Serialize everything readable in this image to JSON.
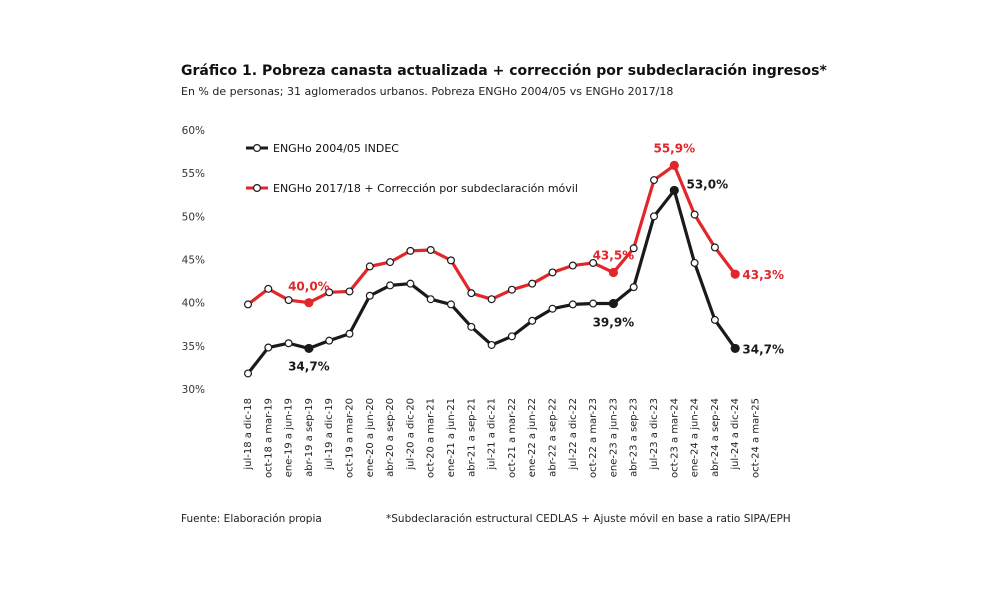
{
  "header": {
    "title": "Gráfico 1. Pobreza canasta actualizada + corrección por subdeclaración ingresos*",
    "subtitle": "En % de personas; 31 aglomerados urbanos. Pobreza ENGHo 2004/05 vs ENGHo 2017/18"
  },
  "footer": {
    "source": "Fuente: Elaboración propia",
    "note": "*Subdeclaración estructural CEDLAS + Ajuste móvil en base a ratio SIPA/EPH"
  },
  "chart_data": {
    "type": "line",
    "title": "Gráfico 1. Pobreza canasta actualizada + corrección por subdeclaración ingresos*",
    "subtitle": "En % de personas; 31 aglomerados urbanos. Pobreza ENGHo 2004/05 vs ENGHo 2017/18",
    "xlabel": "",
    "ylabel": "",
    "ylim": [
      30,
      60
    ],
    "yticks": [
      "30%",
      "35%",
      "40%",
      "45%",
      "50%",
      "55%",
      "60%"
    ],
    "grid": false,
    "legend_position": "top-left",
    "categories": [
      "jul-18 a dic-18",
      "oct-18 a mar-19",
      "ene-19 a jun-19",
      "abr-19 a sep-19",
      "jul-19 a dic-19",
      "oct-19 a mar-20",
      "ene-20 a jun-20",
      "abr-20 a sep-20",
      "jul-20 a dic-20",
      "oct-20 a mar-21",
      "ene-21 a jun-21",
      "abr-21 a sep-21",
      "jul-21 a dic-21",
      "oct-21 a mar-22",
      "ene-22 a jun-22",
      "abr-22 a sep-22",
      "jul-22 a dic-22",
      "oct-22 a mar-23",
      "ene-23 a jun-23",
      "abr-23 a sep-23",
      "jul-23 a dic-23",
      "oct-23 a mar-24",
      "ene-24 a jun-24",
      "abr-24 a sep-24",
      "jul-24 a dic-24",
      "oct-24 a mar-25"
    ],
    "series": [
      {
        "name": "ENGHo 2004/05 INDEC",
        "color": "#1a1a1a",
        "values": [
          31.8,
          34.8,
          35.3,
          34.7,
          35.6,
          36.4,
          40.8,
          42.0,
          42.2,
          40.4,
          39.8,
          37.2,
          35.1,
          36.1,
          37.9,
          39.3,
          39.8,
          39.9,
          39.9,
          41.8,
          50.0,
          53.0,
          44.6,
          38.0,
          34.7,
          null
        ],
        "labels": [
          {
            "index": 3,
            "text": "34,7%"
          },
          {
            "index": 18,
            "text": "39,9%"
          },
          {
            "index": 21,
            "text": "53,0%"
          },
          {
            "index": 24,
            "text": "34,7%"
          }
        ]
      },
      {
        "name": "ENGHo 2017/18 + Corrección por subdeclaración móvil",
        "color": "#e1262c",
        "values": [
          39.8,
          41.6,
          40.3,
          40.0,
          41.2,
          41.3,
          44.2,
          44.7,
          46.0,
          46.1,
          44.9,
          41.1,
          40.4,
          41.5,
          42.2,
          43.5,
          44.3,
          44.6,
          43.5,
          46.3,
          54.2,
          55.9,
          50.2,
          46.4,
          43.3,
          null
        ],
        "labels": [
          {
            "index": 3,
            "text": "40,0%"
          },
          {
            "index": 18,
            "text": "43,5%"
          },
          {
            "index": 21,
            "text": "55,9%"
          },
          {
            "index": 24,
            "text": "43,3%"
          }
        ]
      }
    ]
  }
}
